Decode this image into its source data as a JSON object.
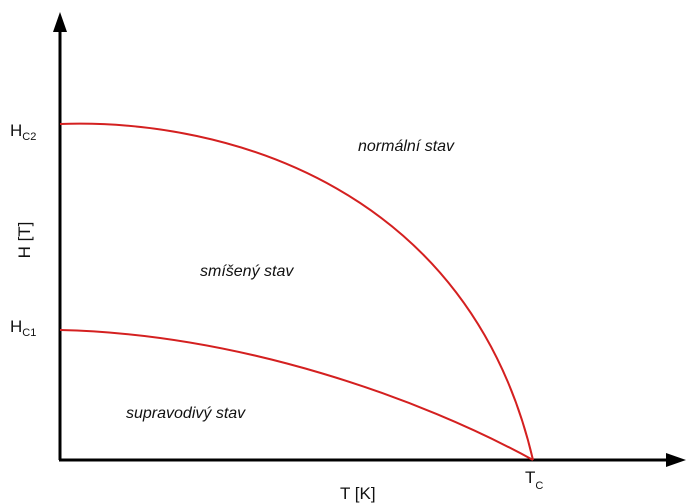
{
  "axes": {
    "x_label": "T [K]",
    "y_label": "H [T]"
  },
  "points": {
    "hc2": {
      "main": "H",
      "sub": "C2"
    },
    "hc1": {
      "main": "H",
      "sub": "C1"
    },
    "tc": {
      "main": "T",
      "sub": "C"
    }
  },
  "regions": {
    "normal": "normální stav",
    "mixed": "smíšený stav",
    "superconducting": "supravodivý stav"
  }
}
